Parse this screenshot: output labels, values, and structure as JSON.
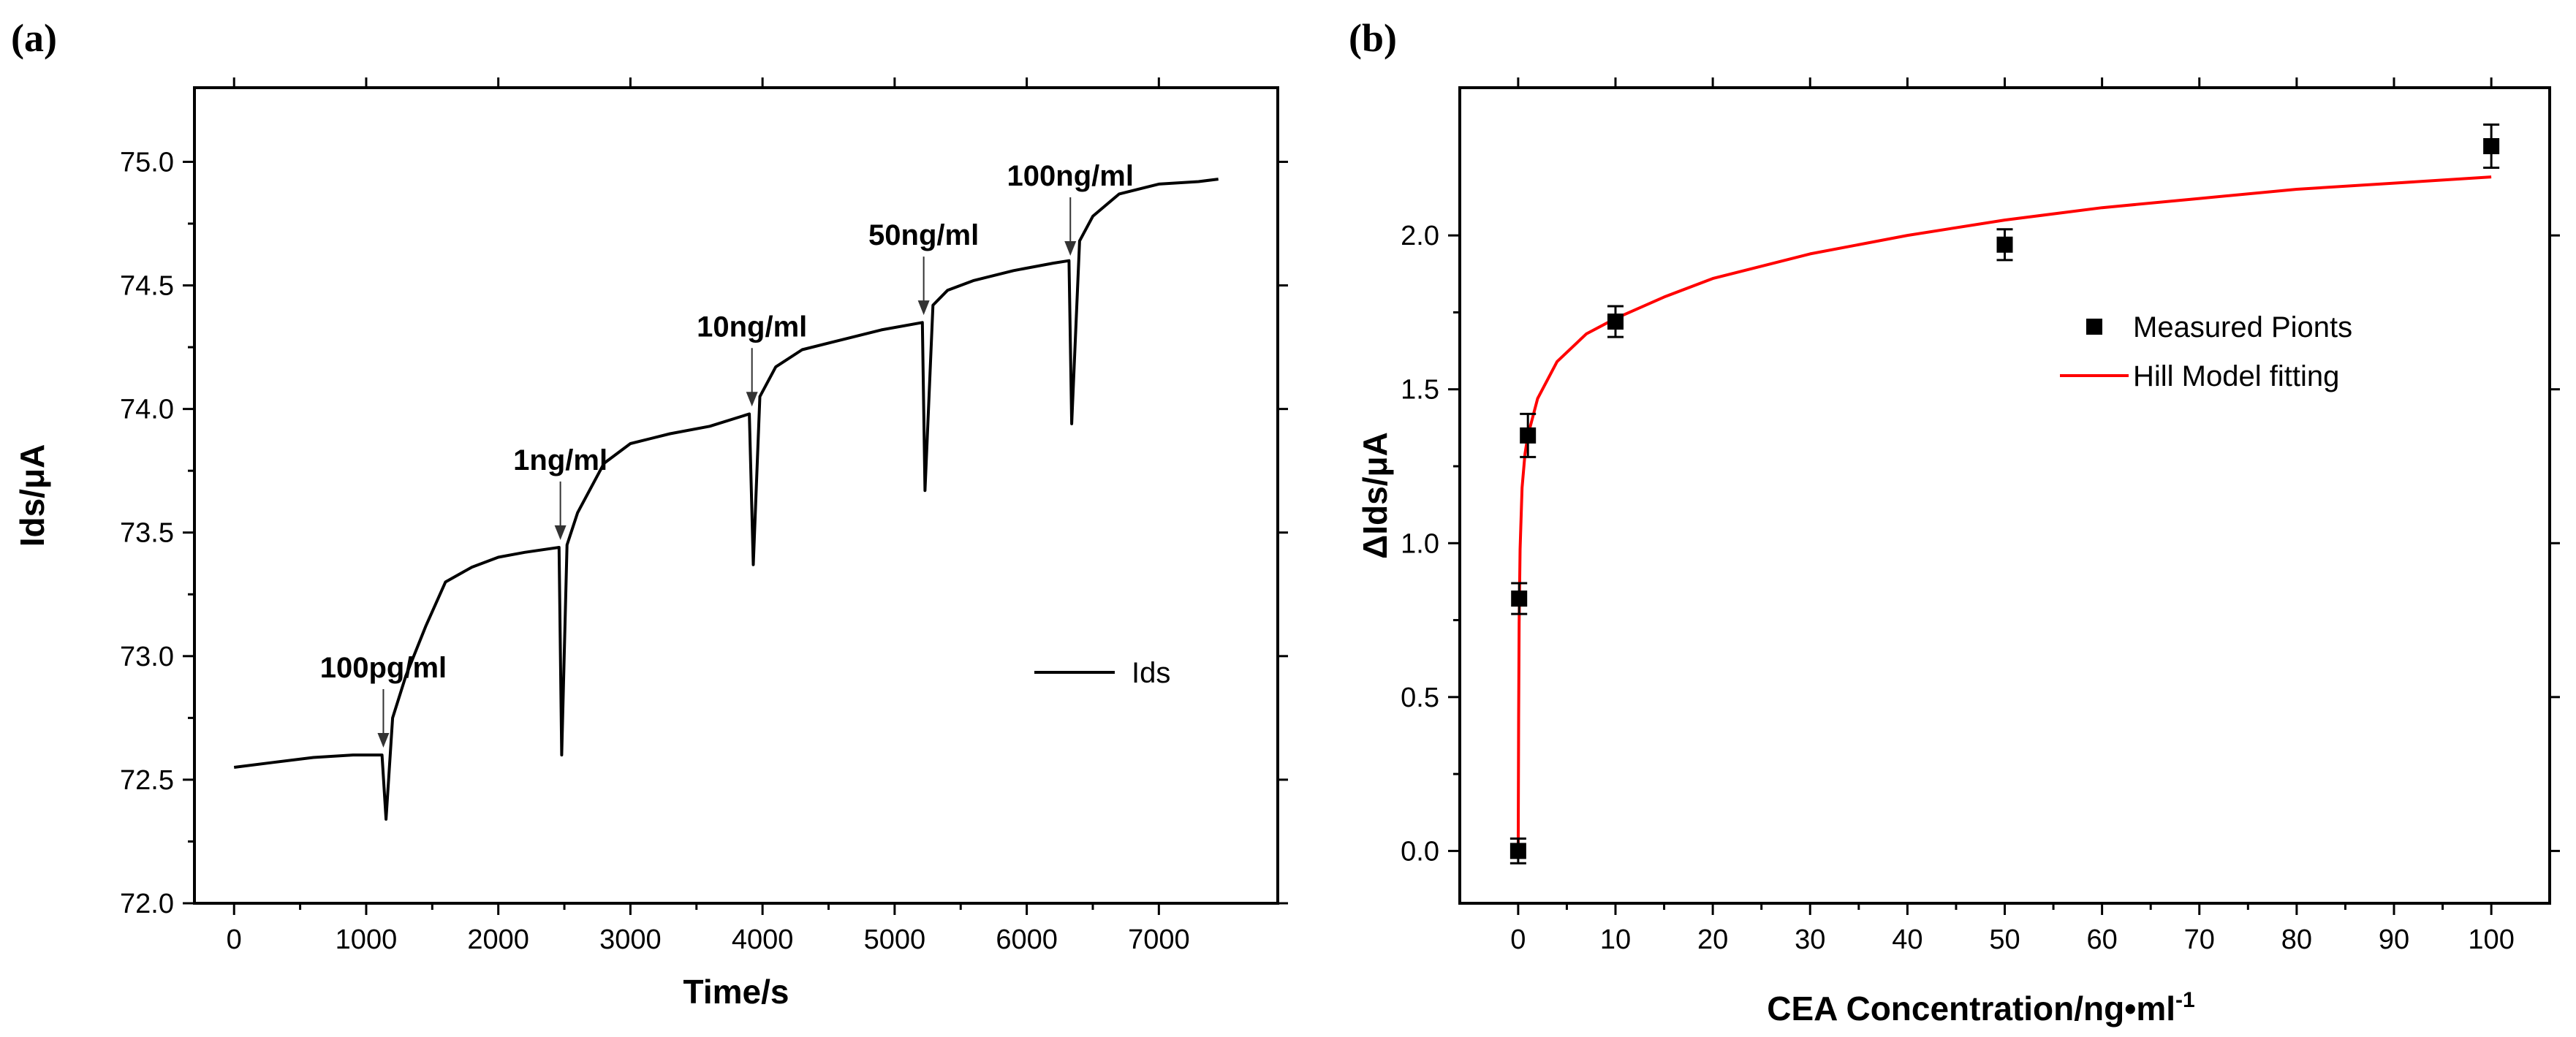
{
  "chart_data": [
    {
      "type": "line",
      "panel_label": "(a)",
      "xlabel": "Time/s",
      "ylabel": "Ids/μA",
      "xlim": [
        -300,
        7900
      ],
      "ylim": [
        72.0,
        75.3
      ],
      "xticks": [
        0,
        1000,
        2000,
        3000,
        4000,
        5000,
        6000,
        7000
      ],
      "yticks": [
        72.0,
        72.5,
        73.0,
        73.5,
        74.0,
        74.5,
        75.0
      ],
      "xtick_labels": [
        "0",
        "1000",
        "2000",
        "3000",
        "4000",
        "5000",
        "6000",
        "7000"
      ],
      "ytick_labels": [
        "72.0",
        "72.5",
        "73.0",
        "73.5",
        "74.0",
        "74.5",
        "75.0"
      ],
      "legend": {
        "position": "right",
        "entries": [
          {
            "name": "Ids",
            "color": "#000000"
          }
        ]
      },
      "series": [
        {
          "name": "Ids",
          "color": "#000000",
          "x": [
            0,
            300,
            600,
            900,
            1120,
            1150,
            1200,
            1300,
            1450,
            1600,
            1800,
            2000,
            2200,
            2460,
            2480,
            2520,
            2600,
            2800,
            3000,
            3300,
            3600,
            3900,
            3930,
            3980,
            4100,
            4300,
            4600,
            4900,
            5210,
            5230,
            5290,
            5400,
            5600,
            5900,
            6200,
            6320,
            6340,
            6400,
            6500,
            6700,
            7000,
            7300,
            7450
          ],
          "y": [
            72.55,
            72.57,
            72.59,
            72.6,
            72.6,
            72.34,
            72.75,
            72.92,
            73.12,
            73.3,
            73.36,
            73.4,
            73.42,
            73.44,
            72.6,
            73.45,
            73.58,
            73.78,
            73.86,
            73.9,
            73.93,
            73.98,
            73.37,
            74.05,
            74.17,
            74.24,
            74.28,
            74.32,
            74.35,
            73.67,
            74.42,
            74.48,
            74.52,
            74.56,
            74.59,
            74.6,
            73.94,
            74.68,
            74.78,
            74.87,
            74.91,
            74.92,
            74.93
          ]
        }
      ],
      "annotations": [
        {
          "text": "100pg/ml",
          "x": 1130,
          "y": 72.63
        },
        {
          "text": "1ng/ml",
          "x": 2470,
          "y": 73.47
        },
        {
          "text": "10ng/ml",
          "x": 3920,
          "y": 74.01
        },
        {
          "text": "50ng/ml",
          "x": 5220,
          "y": 74.38
        },
        {
          "text": "100ng/ml",
          "x": 6330,
          "y": 74.62
        }
      ]
    },
    {
      "type": "scatter",
      "panel_label": "(b)",
      "xlabel_main": "CEA Concentration/ng•ml",
      "xlabel_sup": "-1",
      "ylabel": "ΔIds/μA",
      "xlim": [
        -6,
        106
      ],
      "ylim": [
        -0.17,
        2.48
      ],
      "xticks": [
        0,
        10,
        20,
        30,
        40,
        50,
        60,
        70,
        80,
        90,
        100
      ],
      "yticks": [
        0.0,
        0.5,
        1.0,
        1.5,
        2.0
      ],
      "xtick_labels": [
        "0",
        "10",
        "20",
        "30",
        "40",
        "50",
        "60",
        "70",
        "80",
        "90",
        "100"
      ],
      "ytick_labels": [
        "0.0",
        "0.5",
        "1.0",
        "1.5",
        "2.0"
      ],
      "legend": {
        "position": "right",
        "entries": [
          {
            "name": "Measured Pionts",
            "color": "#000000",
            "marker": "square"
          },
          {
            "name": "Hill Model fitting",
            "color": "#ff0000",
            "marker": "line"
          }
        ]
      },
      "series": [
        {
          "name": "Measured Pionts",
          "color": "#000000",
          "x": [
            0,
            0.1,
            1,
            10,
            50,
            100
          ],
          "y": [
            0.0,
            0.82,
            1.35,
            1.72,
            1.97,
            2.29
          ],
          "error": [
            0.04,
            0.05,
            0.07,
            0.05,
            0.05,
            0.07
          ]
        },
        {
          "name": "Hill Model fitting",
          "color": "#ff0000",
          "x": [
            0,
            0.05,
            0.1,
            0.2,
            0.4,
            0.7,
            1,
            2,
            4,
            7,
            10,
            15,
            20,
            30,
            40,
            50,
            60,
            70,
            80,
            90,
            100
          ],
          "y": [
            0.0,
            0.43,
            0.74,
            0.98,
            1.18,
            1.29,
            1.35,
            1.47,
            1.59,
            1.68,
            1.73,
            1.8,
            1.86,
            1.94,
            2.0,
            2.05,
            2.09,
            2.12,
            2.15,
            2.17,
            2.19
          ]
        }
      ]
    }
  ]
}
